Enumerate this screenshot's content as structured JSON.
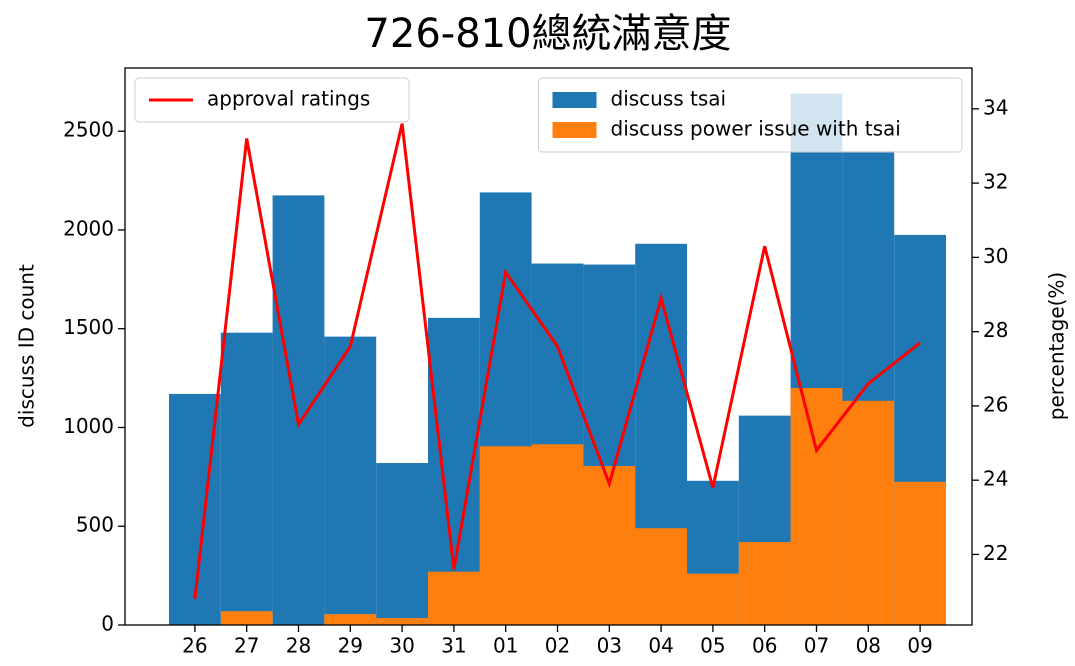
{
  "chart_data": {
    "type": "bar_line",
    "title": "726-810總統滿意度",
    "ylabel": "discuss ID count",
    "y2label": "percentage(%)",
    "categories": [
      "26",
      "27",
      "28",
      "29",
      "30",
      "31",
      "01",
      "02",
      "03",
      "04",
      "05",
      "06",
      "07",
      "08",
      "09"
    ],
    "series": [
      {
        "name": "discuss tsai",
        "kind": "bar",
        "color": "#1f77b4",
        "values": [
          1170,
          1480,
          2175,
          1460,
          820,
          1555,
          2190,
          1830,
          1825,
          1930,
          730,
          1060,
          2690,
          2400,
          1975
        ]
      },
      {
        "name": "discuss power issue with tsai",
        "kind": "bar",
        "color": "#ff7f0e",
        "values": [
          0,
          70,
          0,
          55,
          35,
          270,
          905,
          915,
          805,
          490,
          260,
          420,
          1200,
          1135,
          725
        ]
      },
      {
        "name": "approval ratings",
        "kind": "line",
        "axis": "y2",
        "color": "#ff0000",
        "values": [
          20.8,
          33.2,
          25.5,
          27.6,
          33.6,
          21.6,
          29.6,
          27.6,
          23.9,
          28.9,
          23.8,
          30.3,
          24.8,
          26.6,
          27.7
        ]
      }
    ],
    "ylim": [
      0,
      2820
    ],
    "yticks": [
      0,
      500,
      1000,
      1500,
      2000,
      2500
    ],
    "y2lim": [
      20.1,
      35.1
    ],
    "y2ticks": [
      22,
      24,
      26,
      28,
      30,
      32,
      34
    ],
    "line_legend_loc": "upper left",
    "bar_legend_loc": "upper right"
  }
}
